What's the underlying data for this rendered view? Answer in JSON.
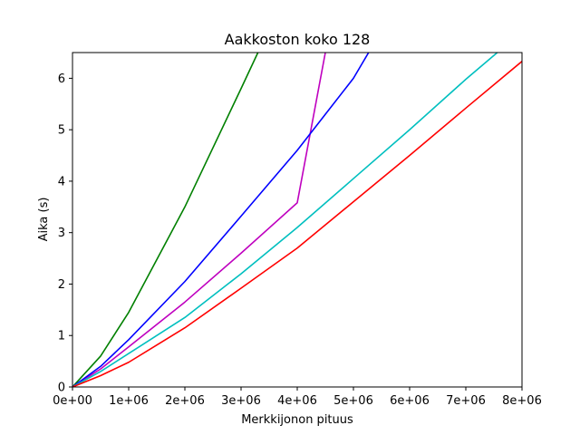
{
  "chart_data": {
    "type": "line",
    "title": "Aakkoston koko 128",
    "xlabel": "Merkkijonon pituus",
    "ylabel": "Aika (s)",
    "xlim": [
      0,
      8000000
    ],
    "ylim": [
      0,
      6.5
    ],
    "xticks": [
      0,
      1000000,
      2000000,
      3000000,
      4000000,
      5000000,
      6000000,
      7000000,
      8000000
    ],
    "xtick_labels": [
      "0e+00",
      "1e+06",
      "2e+06",
      "3e+06",
      "4e+06",
      "5e+06",
      "6e+06",
      "7e+06",
      "8e+06"
    ],
    "yticks": [
      0,
      1,
      2,
      3,
      4,
      5,
      6
    ],
    "ytick_labels": [
      "0",
      "1",
      "2",
      "3",
      "4",
      "5",
      "6"
    ],
    "grid": false,
    "legend": false,
    "series": [
      {
        "color": "#008000",
        "x": [
          0,
          500000,
          1000000,
          2000000,
          3000000,
          3300000
        ],
        "y": [
          0,
          0.6,
          1.45,
          3.5,
          5.8,
          6.5
        ]
      },
      {
        "color": "#bf00bf",
        "x": [
          0,
          500000,
          1000000,
          2000000,
          3000000,
          4000000,
          4500000
        ],
        "y": [
          0,
          0.35,
          0.78,
          1.65,
          2.6,
          3.58,
          6.5
        ]
      },
      {
        "color": "#0000ff",
        "x": [
          0,
          500000,
          1000000,
          2000000,
          3000000,
          4000000,
          5000000,
          5270000
        ],
        "y": [
          0,
          0.4,
          0.92,
          2.05,
          3.32,
          4.6,
          6.0,
          6.5
        ]
      },
      {
        "color": "#00bfbf",
        "x": [
          0,
          500000,
          1000000,
          2000000,
          3000000,
          4000000,
          5000000,
          6000000,
          7000000,
          7560000
        ],
        "y": [
          0,
          0.3,
          0.65,
          1.35,
          2.2,
          3.1,
          4.05,
          5.0,
          5.98,
          6.5
        ]
      },
      {
        "color": "#ff0000",
        "x": [
          0,
          500000,
          1000000,
          2000000,
          3000000,
          4000000,
          5000000,
          6000000,
          7000000,
          8000000
        ],
        "y": [
          0,
          0.22,
          0.48,
          1.15,
          1.92,
          2.7,
          3.6,
          4.5,
          5.42,
          6.33
        ]
      }
    ]
  }
}
